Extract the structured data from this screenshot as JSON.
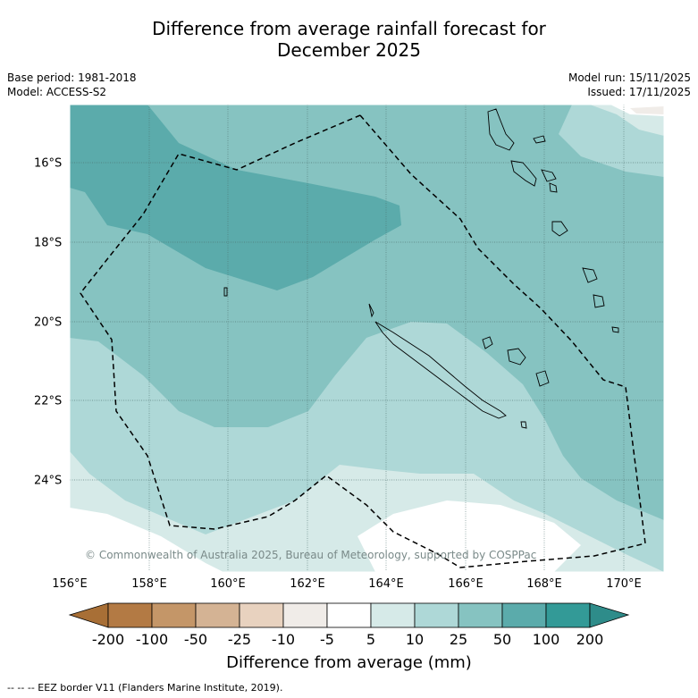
{
  "title_line1": "Difference from average rainfall forecast for",
  "title_line2": "December 2025",
  "base_period": "Base period: 1981-2018",
  "model": "Model: ACCESS-S2",
  "model_run": "Model run: 15/11/2025",
  "issued": "Issued: 17/11/2025",
  "copyright": "© Commonwealth of Australia 2025, Bureau of Meteorology, supported by COSPPac",
  "x_ticks": [
    "156°E",
    "158°E",
    "160°E",
    "162°E",
    "164°E",
    "166°E",
    "168°E",
    "170°E"
  ],
  "y_ticks": [
    "16°S",
    "18°S",
    "20°S",
    "22°S",
    "24°S"
  ],
  "colorbar": {
    "labels": [
      "-200",
      "-100",
      "-50",
      "-25",
      "-10",
      "-5",
      "5",
      "10",
      "25",
      "50",
      "100",
      "200"
    ],
    "colors": [
      "#a86f36",
      "#b37a44",
      "#c49668",
      "#d4b394",
      "#e8d2bf",
      "#f0ece8",
      "#ffffff",
      "#d6eae8",
      "#aed8d7",
      "#86c3c1",
      "#5babab",
      "#339a97",
      "#2e8c8a"
    ],
    "title": "Difference from average (mm)"
  },
  "footnote": "--  --  -- EEZ border V11 (Flanders Marine Institute, 2019)."
}
